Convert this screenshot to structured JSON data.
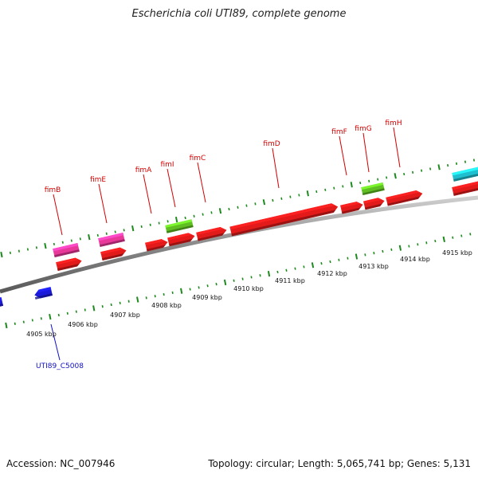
{
  "title": "Escherichia coli UTI89, complete genome",
  "footer": {
    "accession": "Accession: NC_007946",
    "info": "Topology: circular; Length: 5,065,741 bp; Genes: 5,131"
  },
  "colors": {
    "backbone": "#8a8a8a",
    "tick": "#1c8a1c",
    "gene_label": "#d40000",
    "cds_label": "#1010c8",
    "red_feature": "#e21a1a",
    "pink_feature": "#e8399a",
    "green_feature": "#5fbf22",
    "blue_feature": "#1a1ad8",
    "cyan_feature": "#1fbfcf"
  },
  "gene_labels": [
    "fimB",
    "fimE",
    "fimA",
    "fimI",
    "fimC",
    "fimD",
    "fimF",
    "fimG",
    "fimH"
  ],
  "cds_label": "UTI89_C5008",
  "scale_labels": [
    "4905 kbp",
    "4906 kbp",
    "4907 kbp",
    "4908 kbp",
    "4909 kbp",
    "4910 kbp",
    "4911 kbp",
    "4912 kbp",
    "4913 kbp",
    "4914 kbp",
    "4915 kbp"
  ]
}
